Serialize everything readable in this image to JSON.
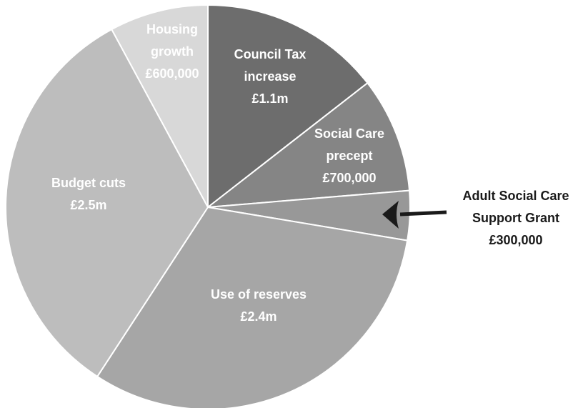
{
  "chart_data": {
    "type": "pie",
    "slices": [
      {
        "label_lines": [
          "Council Tax",
          "increase",
          "£1.1m"
        ],
        "value": 1100000,
        "color": "#6d6d6d",
        "label_fill": "#ffffff"
      },
      {
        "label_lines": [
          "Social Care",
          "precept",
          "£700,000"
        ],
        "value": 700000,
        "color": "#858585",
        "label_fill": "#ffffff"
      },
      {
        "label_lines": [
          "Adult Social Care",
          "Support Grant",
          "£300,000"
        ],
        "value": 300000,
        "color": "#989898",
        "label_fill": "#1a1a1a",
        "callout": true
      },
      {
        "label_lines": [
          "Use of reserves",
          "£2.4m"
        ],
        "value": 2400000,
        "color": "#a6a6a6",
        "label_fill": "#1a1a1a"
      },
      {
        "label_lines": [
          "Budget cuts",
          "£2.5m"
        ],
        "value": 2500000,
        "color": "#bdbdbd",
        "label_fill": "#1a1a1a"
      },
      {
        "label_lines": [
          "Housing",
          "growth",
          "£600,000"
        ],
        "value": 600000,
        "color": "#d8d8d8",
        "label_fill": "#1a1a1a"
      }
    ],
    "start_angle": "12 o'clock",
    "direction": "clockwise",
    "legend": "none",
    "slice_separator_color": "#ffffff"
  }
}
